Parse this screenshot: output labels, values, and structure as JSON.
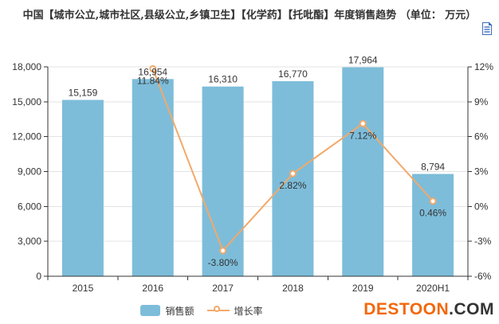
{
  "title": "中国【城市公立,城市社区,县级公立,乡镇卫生】【化学药】【托吡酯】年度销售趋势 （单位： 万元）",
  "toolbox": {
    "icon": "data-view-icon"
  },
  "legend": {
    "items": [
      {
        "label": "销售额",
        "marker": "bar-swatch"
      },
      {
        "label": "增长率",
        "marker": "line-circle"
      }
    ]
  },
  "watermark": {
    "brand": "DESTOON",
    "suffix": ".COM"
  },
  "colors": {
    "bar": "#7dbdda",
    "line": "#f2a96a",
    "grid": "#e3e3e3",
    "axis": "#333333",
    "label": "#333333",
    "toolbox_icon": "#3d6cc0",
    "logo_orange": "#f2670a",
    "logo_dark": "#333333"
  },
  "chart_data": {
    "type": "bar",
    "subtype": "bar-line-combo",
    "categories": [
      "2015",
      "2016",
      "2017",
      "2018",
      "2019",
      "2020H1"
    ],
    "series": [
      {
        "name": "销售额",
        "type": "bar",
        "axis": "left",
        "values": [
          15159,
          16954,
          16310,
          16770,
          17964,
          8794
        ],
        "value_labels": [
          "15,159",
          "16,954",
          "16,310",
          "16,770",
          "17,964",
          "8,794"
        ]
      },
      {
        "name": "增长率",
        "type": "line",
        "axis": "right",
        "values": [
          null,
          11.84,
          -3.8,
          2.82,
          7.12,
          0.46
        ],
        "value_labels": [
          "",
          "11.84%",
          "-3.80%",
          "2.82%",
          "7.12%",
          "0.46%"
        ]
      }
    ],
    "left_axis": {
      "min": 0,
      "max": 18000,
      "tick_step": 3000,
      "tick_labels": [
        "0",
        "3,000",
        "6,000",
        "9,000",
        "12,000",
        "15,000",
        "18,000"
      ]
    },
    "right_axis": {
      "min": -6,
      "max": 12,
      "tick_step": 3,
      "tick_labels": [
        "-6%",
        "-3%",
        "0%",
        "3%",
        "6%",
        "9%",
        "12%"
      ]
    },
    "grid": true,
    "legend_position": "bottom-center",
    "title": "中国【城市公立,城市社区,县级公立,乡镇卫生】【化学药】【托吡酯】年度销售趋势 （单位： 万元）"
  }
}
